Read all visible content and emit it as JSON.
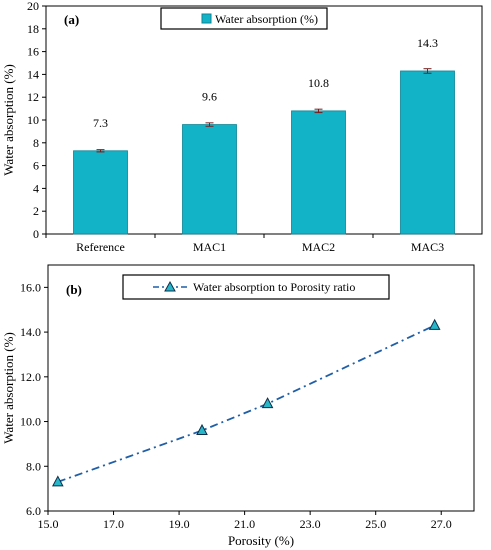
{
  "colors": {
    "bar_fill": "#13b3c7",
    "bar_stroke": "#0b8494",
    "line": "#1f5fa8",
    "marker_fill": "#27b7c9",
    "marker_stroke": "#0f2d4a",
    "error_bar": "#7a1c1c"
  },
  "chart_data": [
    {
      "type": "bar",
      "panel_label": "(a)",
      "categories": [
        "Reference",
        "MAC1",
        "MAC2",
        "MAC3"
      ],
      "series": [
        {
          "name": "Water absorption (%)",
          "values": [
            7.3,
            9.6,
            10.8,
            14.3
          ],
          "data_labels": [
            "7.3",
            "9.6",
            "10.8",
            "14.3"
          ],
          "error": [
            0.1,
            0.15,
            0.15,
            0.2
          ]
        }
      ],
      "ylabel": "Water absorption (%)",
      "xlabel": "",
      "ylim": [
        0,
        20
      ],
      "yticks": [
        "0",
        "2",
        "4",
        "6",
        "8",
        "10",
        "12",
        "14",
        "16",
        "18",
        "20"
      ],
      "grid": false,
      "legend": "top-center"
    },
    {
      "type": "line",
      "panel_label": "(b)",
      "series": [
        {
          "name": "Water absorption to Porosity ratio",
          "x": [
            15.3,
            19.7,
            21.7,
            26.8
          ],
          "y": [
            7.3,
            9.6,
            10.8,
            14.3
          ],
          "line_style": "dash-dot",
          "marker": "triangle"
        }
      ],
      "xlabel": "Porosity (%)",
      "ylabel": "Water absorption (%)",
      "xlim": [
        15,
        28
      ],
      "ylim": [
        6,
        17
      ],
      "xticks": [
        "15.0",
        "17.0",
        "19.0",
        "21.0",
        "23.0",
        "25.0",
        "27.0"
      ],
      "yticks": [
        "6.0",
        "8.0",
        "10.0",
        "12.0",
        "14.0",
        "16.0"
      ],
      "grid": false,
      "legend": "top-center"
    }
  ]
}
